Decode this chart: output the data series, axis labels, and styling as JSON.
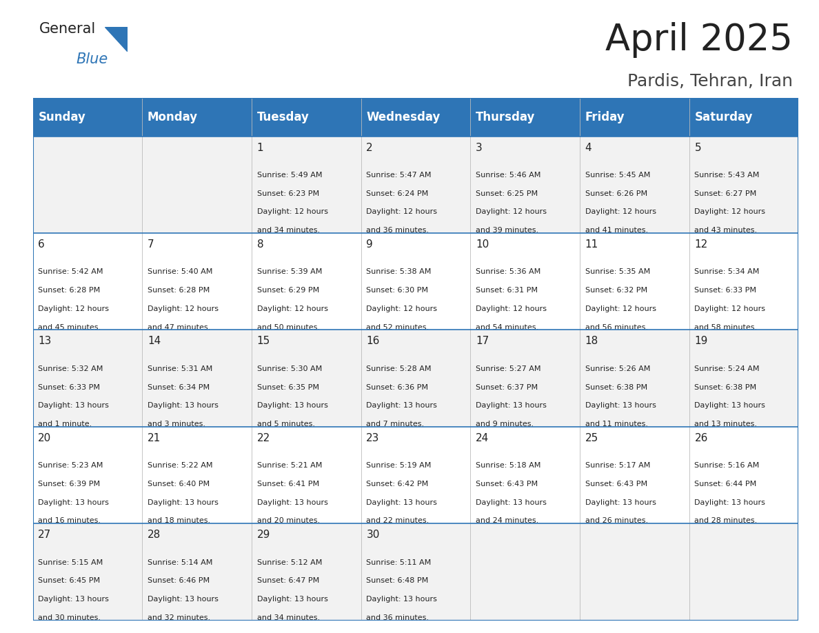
{
  "title": "April 2025",
  "subtitle": "Pardis, Tehran, Iran",
  "header_color": "#2E75B6",
  "header_text_color": "#FFFFFF",
  "days_of_week": [
    "Sunday",
    "Monday",
    "Tuesday",
    "Wednesday",
    "Thursday",
    "Friday",
    "Saturday"
  ],
  "background_color": "#FFFFFF",
  "cell_bg_even": "#F2F2F2",
  "cell_bg_odd": "#FFFFFF",
  "row_line_color": "#2E75B6",
  "calendar_data": [
    [
      {
        "day": "",
        "sunrise": "",
        "sunset": "",
        "daylight": ""
      },
      {
        "day": "",
        "sunrise": "",
        "sunset": "",
        "daylight": ""
      },
      {
        "day": "1",
        "sunrise": "5:49 AM",
        "sunset": "6:23 PM",
        "daylight": "12 hours and 34 minutes."
      },
      {
        "day": "2",
        "sunrise": "5:47 AM",
        "sunset": "6:24 PM",
        "daylight": "12 hours and 36 minutes."
      },
      {
        "day": "3",
        "sunrise": "5:46 AM",
        "sunset": "6:25 PM",
        "daylight": "12 hours and 39 minutes."
      },
      {
        "day": "4",
        "sunrise": "5:45 AM",
        "sunset": "6:26 PM",
        "daylight": "12 hours and 41 minutes."
      },
      {
        "day": "5",
        "sunrise": "5:43 AM",
        "sunset": "6:27 PM",
        "daylight": "12 hours and 43 minutes."
      }
    ],
    [
      {
        "day": "6",
        "sunrise": "5:42 AM",
        "sunset": "6:28 PM",
        "daylight": "12 hours and 45 minutes."
      },
      {
        "day": "7",
        "sunrise": "5:40 AM",
        "sunset": "6:28 PM",
        "daylight": "12 hours and 47 minutes."
      },
      {
        "day": "8",
        "sunrise": "5:39 AM",
        "sunset": "6:29 PM",
        "daylight": "12 hours and 50 minutes."
      },
      {
        "day": "9",
        "sunrise": "5:38 AM",
        "sunset": "6:30 PM",
        "daylight": "12 hours and 52 minutes."
      },
      {
        "day": "10",
        "sunrise": "5:36 AM",
        "sunset": "6:31 PM",
        "daylight": "12 hours and 54 minutes."
      },
      {
        "day": "11",
        "sunrise": "5:35 AM",
        "sunset": "6:32 PM",
        "daylight": "12 hours and 56 minutes."
      },
      {
        "day": "12",
        "sunrise": "5:34 AM",
        "sunset": "6:33 PM",
        "daylight": "12 hours and 58 minutes."
      }
    ],
    [
      {
        "day": "13",
        "sunrise": "5:32 AM",
        "sunset": "6:33 PM",
        "daylight": "13 hours and 1 minute."
      },
      {
        "day": "14",
        "sunrise": "5:31 AM",
        "sunset": "6:34 PM",
        "daylight": "13 hours and 3 minutes."
      },
      {
        "day": "15",
        "sunrise": "5:30 AM",
        "sunset": "6:35 PM",
        "daylight": "13 hours and 5 minutes."
      },
      {
        "day": "16",
        "sunrise": "5:28 AM",
        "sunset": "6:36 PM",
        "daylight": "13 hours and 7 minutes."
      },
      {
        "day": "17",
        "sunrise": "5:27 AM",
        "sunset": "6:37 PM",
        "daylight": "13 hours and 9 minutes."
      },
      {
        "day": "18",
        "sunrise": "5:26 AM",
        "sunset": "6:38 PM",
        "daylight": "13 hours and 11 minutes."
      },
      {
        "day": "19",
        "sunrise": "5:24 AM",
        "sunset": "6:38 PM",
        "daylight": "13 hours and 13 minutes."
      }
    ],
    [
      {
        "day": "20",
        "sunrise": "5:23 AM",
        "sunset": "6:39 PM",
        "daylight": "13 hours and 16 minutes."
      },
      {
        "day": "21",
        "sunrise": "5:22 AM",
        "sunset": "6:40 PM",
        "daylight": "13 hours and 18 minutes."
      },
      {
        "day": "22",
        "sunrise": "5:21 AM",
        "sunset": "6:41 PM",
        "daylight": "13 hours and 20 minutes."
      },
      {
        "day": "23",
        "sunrise": "5:19 AM",
        "sunset": "6:42 PM",
        "daylight": "13 hours and 22 minutes."
      },
      {
        "day": "24",
        "sunrise": "5:18 AM",
        "sunset": "6:43 PM",
        "daylight": "13 hours and 24 minutes."
      },
      {
        "day": "25",
        "sunrise": "5:17 AM",
        "sunset": "6:43 PM",
        "daylight": "13 hours and 26 minutes."
      },
      {
        "day": "26",
        "sunrise": "5:16 AM",
        "sunset": "6:44 PM",
        "daylight": "13 hours and 28 minutes."
      }
    ],
    [
      {
        "day": "27",
        "sunrise": "5:15 AM",
        "sunset": "6:45 PM",
        "daylight": "13 hours and 30 minutes."
      },
      {
        "day": "28",
        "sunrise": "5:14 AM",
        "sunset": "6:46 PM",
        "daylight": "13 hours and 32 minutes."
      },
      {
        "day": "29",
        "sunrise": "5:12 AM",
        "sunset": "6:47 PM",
        "daylight": "13 hours and 34 minutes."
      },
      {
        "day": "30",
        "sunrise": "5:11 AM",
        "sunset": "6:48 PM",
        "daylight": "13 hours and 36 minutes."
      },
      {
        "day": "",
        "sunrise": "",
        "sunset": "",
        "daylight": ""
      },
      {
        "day": "",
        "sunrise": "",
        "sunset": "",
        "daylight": ""
      },
      {
        "day": "",
        "sunrise": "",
        "sunset": "",
        "daylight": ""
      }
    ]
  ],
  "logo_text1": "General",
  "logo_text2": "Blue",
  "logo_color1": "#222222",
  "logo_color2": "#2E75B6",
  "title_fontsize": 38,
  "subtitle_fontsize": 18,
  "header_fontsize": 12,
  "day_number_fontsize": 11,
  "cell_text_fontsize": 8
}
